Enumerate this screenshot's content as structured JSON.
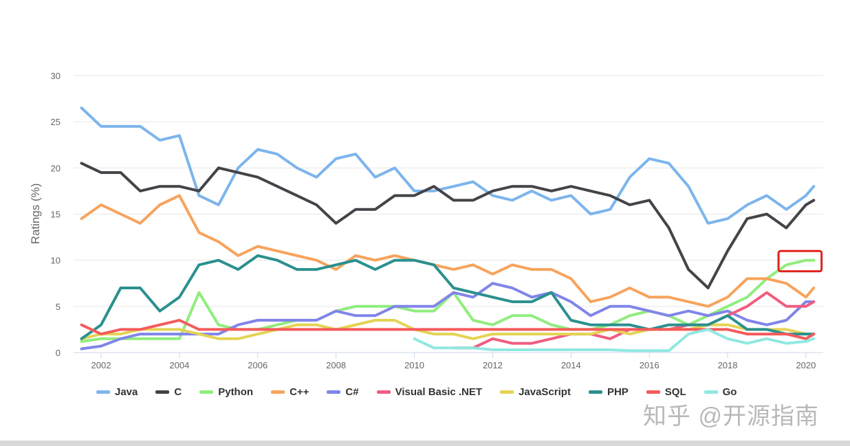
{
  "chart_data": {
    "type": "line",
    "title": "",
    "xlabel": "",
    "ylabel": "Ratings (%)",
    "xlim": [
      2001.5,
      2020.3
    ],
    "ylim": [
      0,
      30
    ],
    "x_ticks": [
      "2002",
      "2004",
      "2006",
      "2008",
      "2010",
      "2012",
      "2014",
      "2016",
      "2018",
      "2020"
    ],
    "y_ticks": [
      "0",
      "5",
      "10",
      "15",
      "20",
      "25",
      "30"
    ],
    "grid": "horizontal",
    "legend_placement": "bottom",
    "x": [
      2001.5,
      2002,
      2002.5,
      2003,
      2003.5,
      2004,
      2004.5,
      2005,
      2005.5,
      2006,
      2006.5,
      2007,
      2007.5,
      2008,
      2008.5,
      2009,
      2009.5,
      2010,
      2010.5,
      2011,
      2011.5,
      2012,
      2012.5,
      2013,
      2013.5,
      2014,
      2014.5,
      2015,
      2015.5,
      2016,
      2016.5,
      2017,
      2017.5,
      2018,
      2018.5,
      2019,
      2019.5,
      2020,
      2020.2
    ],
    "series": [
      {
        "name": "Java",
        "color": "#7cb5ec",
        "values": [
          26.5,
          24.5,
          24.5,
          24.5,
          23,
          23.5,
          17,
          16,
          20,
          22,
          21.5,
          20,
          19,
          21,
          21.5,
          19,
          20,
          17.5,
          17.5,
          18,
          18.5,
          17,
          16.5,
          17.5,
          16.5,
          17,
          15,
          15.5,
          19,
          21,
          20.5,
          18,
          14,
          14.5,
          16,
          17,
          15.5,
          17,
          18
        ]
      },
      {
        "name": "C",
        "color": "#434348",
        "values": [
          20.5,
          19.5,
          19.5,
          17.5,
          18,
          18,
          17.5,
          20,
          19.5,
          19,
          18,
          17,
          16,
          14,
          15.5,
          15.5,
          17,
          17,
          18,
          16.5,
          16.5,
          17.5,
          18,
          18,
          17.5,
          18,
          17.5,
          17,
          16,
          16.5,
          13.5,
          9,
          7,
          11,
          14.5,
          15,
          13.5,
          16,
          16.5
        ]
      },
      {
        "name": "Python",
        "color": "#90ed7d",
        "values": [
          1.2,
          1.5,
          1.5,
          1.5,
          1.5,
          1.5,
          6.5,
          3,
          2.5,
          2.5,
          3,
          3.5,
          3.5,
          4.5,
          5,
          5,
          5,
          4.5,
          4.5,
          6.5,
          3.5,
          3,
          4,
          4,
          3,
          2.5,
          2.5,
          3,
          4,
          4.5,
          4,
          3,
          4,
          5,
          6,
          8,
          9.5,
          10,
          10
        ]
      },
      {
        "name": "C++",
        "color": "#f7a35c",
        "values": [
          14.5,
          16,
          15,
          14,
          16,
          17,
          13,
          12,
          10.5,
          11.5,
          11,
          10.5,
          10,
          9,
          10.5,
          10,
          10.5,
          10,
          9.5,
          9,
          9.5,
          8.5,
          9.5,
          9,
          9,
          8,
          5.5,
          6,
          7,
          6,
          6,
          5.5,
          5,
          6,
          8,
          8,
          7.5,
          6,
          7
        ]
      },
      {
        "name": "C#",
        "color": "#8085e9",
        "values": [
          0.4,
          0.7,
          1.5,
          2,
          2,
          2,
          2,
          2,
          3,
          3.5,
          3.5,
          3.5,
          3.5,
          4.5,
          4,
          4,
          5,
          5,
          5,
          6.5,
          6,
          7.5,
          7,
          6,
          6.5,
          5.5,
          4,
          5,
          5,
          4.5,
          4,
          4.5,
          4,
          4.5,
          3.5,
          3,
          3.5,
          5.5,
          5.5
        ]
      },
      {
        "name": "Visual Basic .NET",
        "color": "#f15c80",
        "values": [
          null,
          null,
          null,
          null,
          null,
          null,
          null,
          null,
          null,
          null,
          null,
          null,
          null,
          null,
          null,
          null,
          null,
          null,
          null,
          0.5,
          0.5,
          1.5,
          1,
          1,
          1.5,
          2,
          2,
          1.5,
          2.5,
          2.5,
          2.5,
          3,
          3,
          4,
          5,
          6.5,
          5,
          5,
          5.5
        ]
      },
      {
        "name": "JavaScript",
        "color": "#e4d354",
        "values": [
          1.5,
          2,
          2,
          2.5,
          2.5,
          2.5,
          2,
          1.5,
          1.5,
          2,
          2.5,
          3,
          3,
          2.5,
          3,
          3.5,
          3.5,
          2.5,
          2,
          2,
          1.5,
          2,
          2,
          2,
          2,
          2,
          2,
          2.5,
          2,
          2.5,
          2.5,
          2.5,
          3,
          3,
          2.5,
          2.5,
          2.5,
          2,
          2
        ]
      },
      {
        "name": "PHP",
        "color": "#2b908f",
        "values": [
          1.5,
          3,
          7,
          7,
          4.5,
          6,
          9.5,
          10,
          9,
          10.5,
          10,
          9,
          9,
          9.5,
          10,
          9,
          10,
          10,
          9.5,
          7,
          6.5,
          6,
          5.5,
          5.5,
          6.5,
          3.5,
          3,
          3,
          3,
          2.5,
          3,
          3,
          3,
          4,
          2.5,
          2.5,
          2,
          2,
          2
        ]
      },
      {
        "name": "SQL",
        "color": "#f45b5b",
        "values": [
          3,
          2,
          2.5,
          2.5,
          3,
          3.5,
          2.5,
          2.5,
          2.5,
          2.5,
          2.5,
          2.5,
          2.5,
          2.5,
          2.5,
          2.5,
          2.5,
          2.5,
          2.5,
          2.5,
          2.5,
          2.5,
          2.5,
          2.5,
          2.5,
          2.5,
          2.5,
          2.5,
          2.5,
          2.5,
          2.5,
          2.5,
          2.5,
          2.5,
          2,
          2,
          2,
          1.5,
          2
        ]
      },
      {
        "name": "Go",
        "color": "#91e8e1",
        "values": [
          null,
          null,
          null,
          null,
          null,
          null,
          null,
          null,
          null,
          null,
          null,
          null,
          null,
          null,
          null,
          null,
          null,
          1.5,
          0.5,
          0.5,
          0.5,
          0.3,
          0.3,
          0.3,
          0.3,
          0.3,
          0.3,
          0.3,
          0.2,
          0.2,
          0.2,
          2,
          2.5,
          1.5,
          1,
          1.5,
          1,
          1.2,
          1.5
        ]
      }
    ],
    "annotation": {
      "shape": "rectangle",
      "color": "#e0201b",
      "x_range": [
        2019.3,
        2020.4
      ],
      "y_range": [
        8.8,
        11
      ]
    }
  },
  "watermark": "知乎 @开源指南"
}
